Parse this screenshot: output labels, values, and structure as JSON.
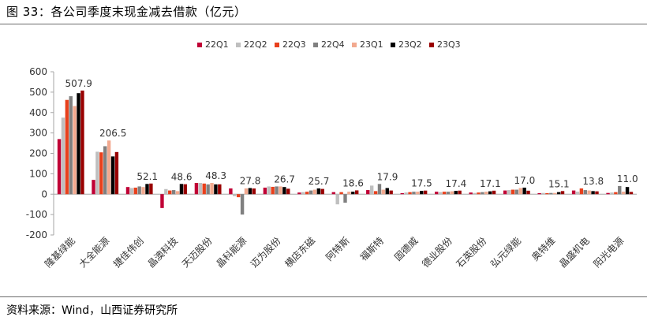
{
  "figure": {
    "title": "图 33：各公司季度末现金减去借款（亿元）",
    "source": "资料来源：Wind，山西证券研究所"
  },
  "chart_data": {
    "type": "bar",
    "title": "",
    "xlabel": "",
    "ylabel": "",
    "ylim": [
      -200,
      600
    ],
    "yticks": [
      -200,
      -100,
      0,
      100,
      200,
      300,
      400,
      500,
      600
    ],
    "grid": false,
    "legend_position": "top",
    "categories": [
      "隆基绿能",
      "大全能源",
      "捷佳伟创",
      "晶澳科技",
      "天迈股份",
      "晶科能源",
      "迈为股份",
      "横店东磁",
      "阿特斯",
      "福斯特",
      "固德威",
      "德业股份",
      "石英股份",
      "弘元绿能",
      "奥特维",
      "晶盛机电",
      "阳光电源"
    ],
    "series": [
      {
        "name": "22Q1",
        "color": "#c00035",
        "values": [
          270,
          70,
          35,
          -68,
          55,
          28,
          32,
          8,
          10,
          20,
          5,
          12,
          8,
          18,
          5,
          18,
          6
        ]
      },
      {
        "name": "22Q2",
        "color": "#bfbfbf",
        "values": [
          375,
          208,
          30,
          25,
          55,
          -10,
          38,
          10,
          -50,
          42,
          8,
          10,
          6,
          20,
          6,
          12,
          8
        ]
      },
      {
        "name": "22Q3",
        "color": "#e8401c",
        "values": [
          462,
          205,
          32,
          18,
          52,
          -15,
          36,
          12,
          10,
          15,
          10,
          12,
          8,
          22,
          5,
          28,
          10
        ]
      },
      {
        "name": "22Q4",
        "color": "#808080",
        "values": [
          480,
          235,
          38,
          20,
          48,
          -100,
          38,
          18,
          -42,
          50,
          12,
          12,
          10,
          22,
          6,
          20,
          40
        ]
      },
      {
        "name": "23Q1",
        "color": "#f2a98f",
        "values": [
          432,
          263,
          35,
          15,
          55,
          28,
          38,
          22,
          12,
          22,
          12,
          14,
          12,
          30,
          6,
          18,
          12
        ]
      },
      {
        "name": "23Q2",
        "color": "#000000",
        "values": [
          495,
          185,
          50,
          50,
          48,
          30,
          35,
          28,
          12,
          30,
          16,
          16,
          14,
          32,
          10,
          15,
          35
        ]
      },
      {
        "name": "23Q3",
        "color": "#990000",
        "values": [
          507.9,
          206.5,
          52.1,
          48.6,
          48.3,
          27.8,
          26.7,
          25.7,
          18.6,
          17.9,
          17.5,
          17.4,
          17.1,
          17.0,
          15.1,
          13.8,
          11.0
        ]
      }
    ],
    "data_labels": [
      "507.9",
      "206.5",
      "52.1",
      "48.6",
      "48.3",
      "27.8",
      "26.7",
      "25.7",
      "18.6",
      "17.9",
      "17.5",
      "17.4",
      "17.1",
      "17.0",
      "15.1",
      "13.8",
      "11.0"
    ]
  }
}
